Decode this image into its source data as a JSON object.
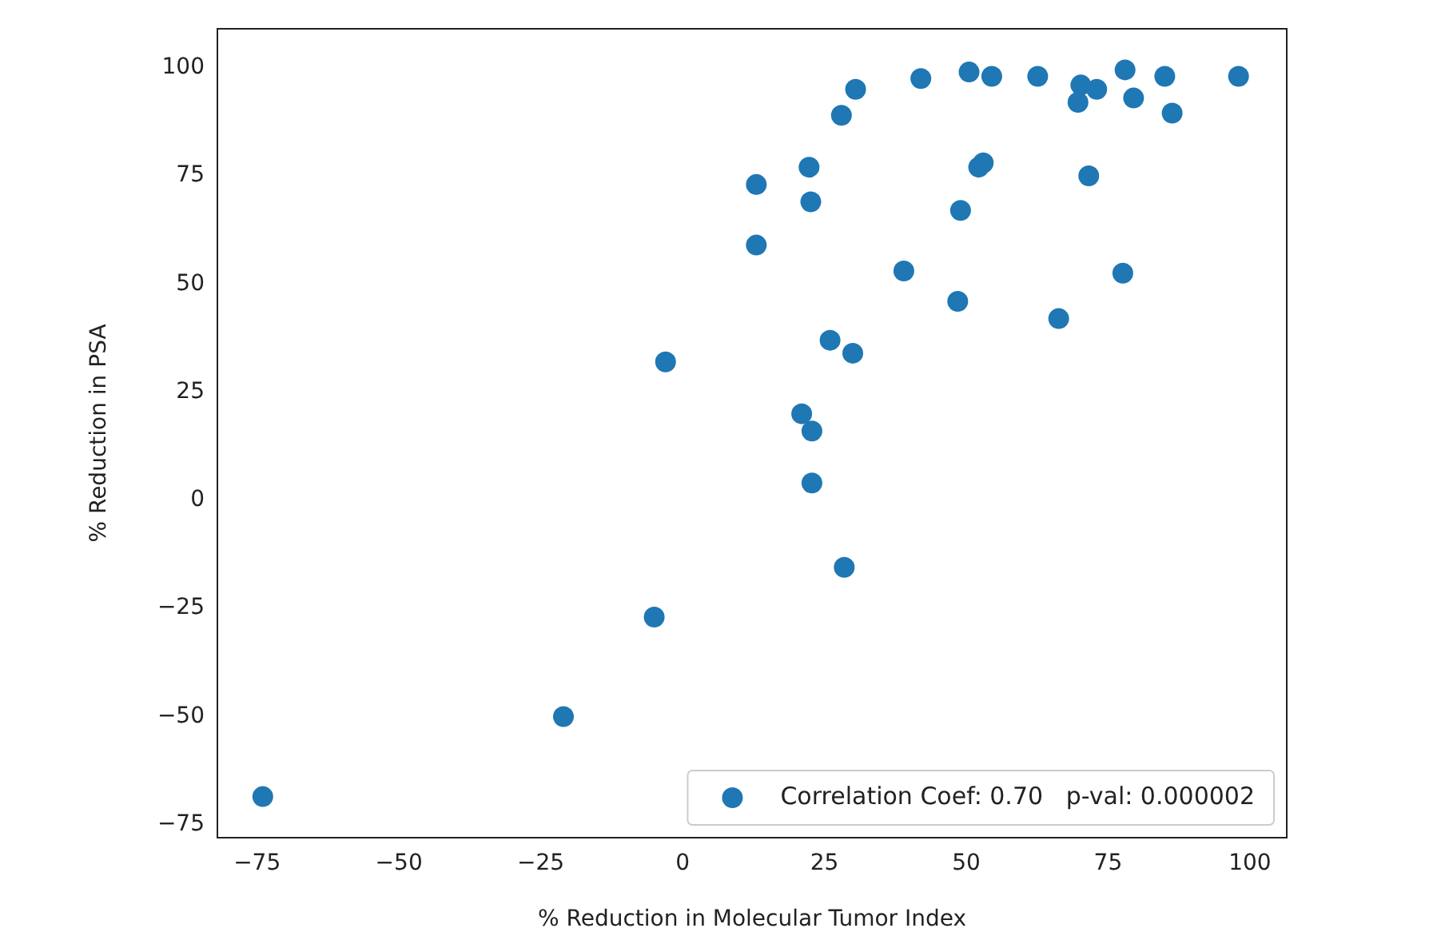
{
  "chart_data": {
    "type": "scatter",
    "xlabel": "% Reduction in Molecular Tumor Index",
    "ylabel": "% Reduction in PSA",
    "xlim": [
      -82,
      106.5
    ],
    "ylim": [
      -78,
      109
    ],
    "xticks": [
      {
        "value": -75,
        "label": "−75"
      },
      {
        "value": -50,
        "label": "−50"
      },
      {
        "value": -25,
        "label": "−25"
      },
      0,
      25,
      50,
      75,
      100
    ],
    "yticks": [
      {
        "value": -75,
        "label": "−75"
      },
      {
        "value": -50,
        "label": "−50"
      },
      {
        "value": -25,
        "label": "−25"
      },
      0,
      25,
      50,
      75,
      100
    ],
    "grid": false,
    "legend": "bottom right",
    "marker": "circle",
    "series": [
      {
        "name": "Correlation Coef: 0.70   p-val: 0.000002",
        "color": "#1f77b4",
        "x": [
          -74,
          -21,
          -5,
          -3,
          13,
          13,
          22.3,
          22.6,
          21,
          22.8,
          22.8,
          26,
          28.5,
          28,
          30.5,
          30,
          42,
          39,
          50.5,
          54.5,
          49,
          48.5,
          52.2,
          53,
          62.6,
          66.3,
          70.2,
          69.7,
          73,
          71.6,
          78,
          77.6,
          79.5,
          85,
          86.3,
          98
        ],
        "values": [
          -68.5,
          -50,
          -27,
          32,
          73,
          59,
          77,
          69,
          20,
          16,
          4,
          37,
          -15.5,
          89,
          95,
          34,
          97.5,
          53,
          99,
          98,
          67,
          46,
          77,
          78,
          98,
          42,
          96,
          92,
          95,
          75,
          99.5,
          52.5,
          93,
          98,
          89.5,
          98
        ]
      }
    ]
  }
}
